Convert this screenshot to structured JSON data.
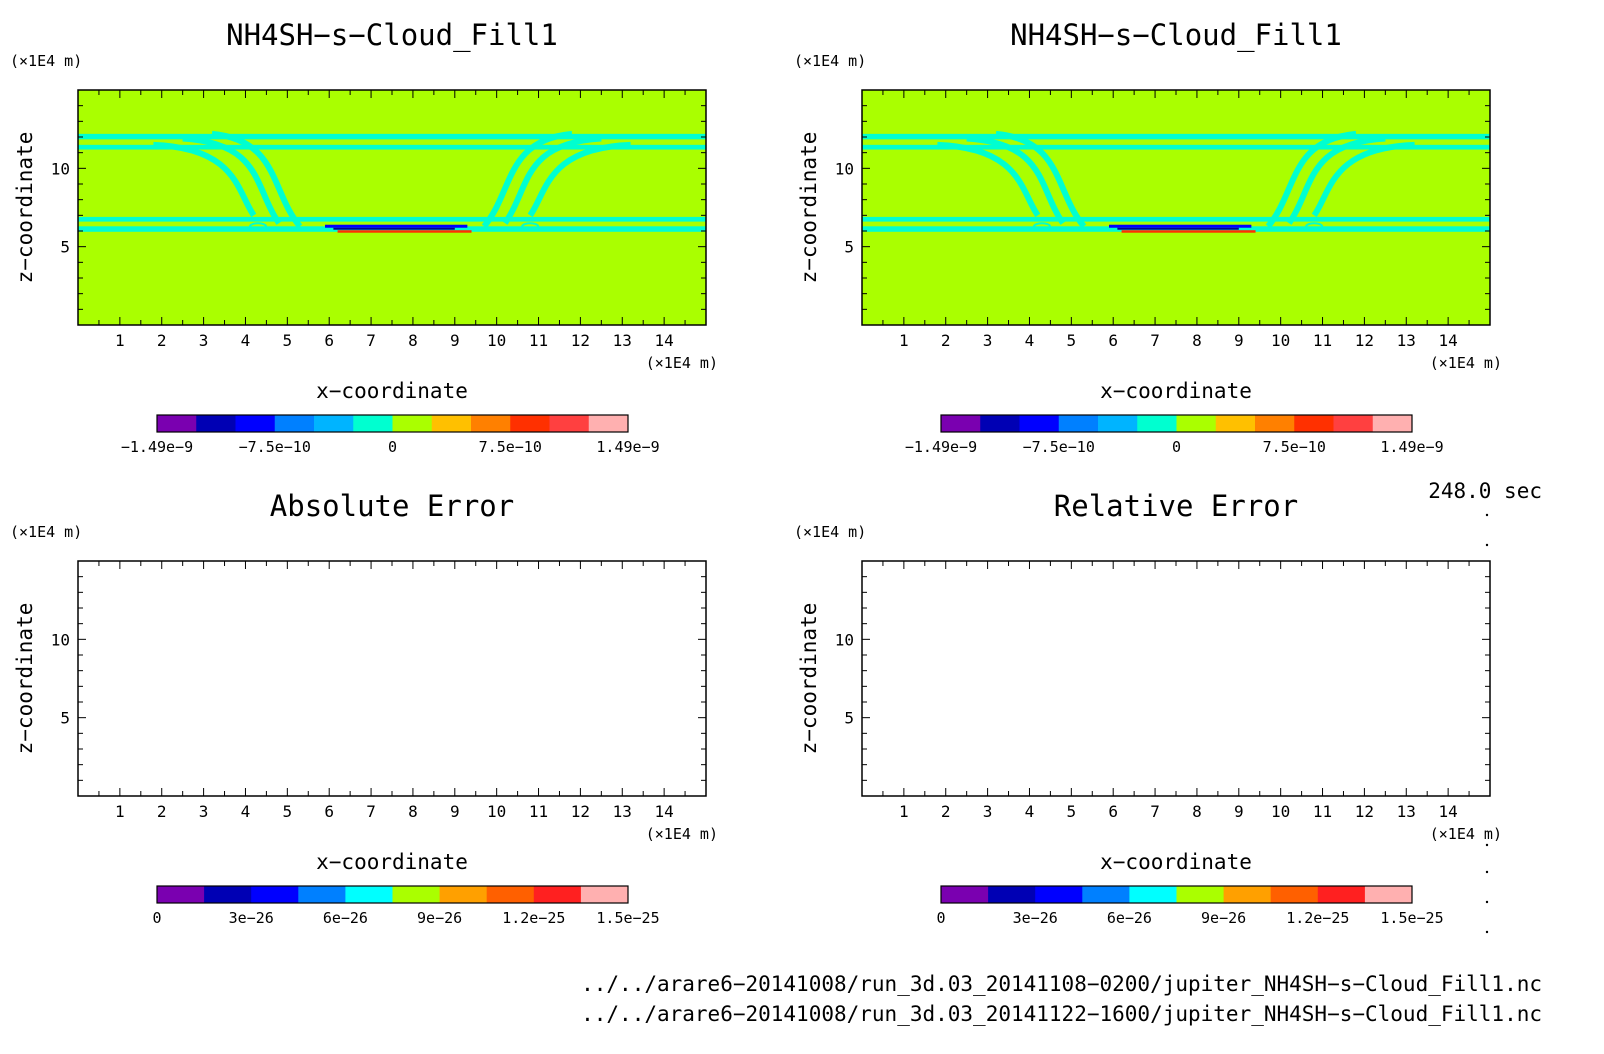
{
  "chart_data": [
    {
      "type": "heatmap",
      "id": "top-left",
      "title": "NH4SH−s−Cloud_Fill1",
      "xlabel": "x−coordinate",
      "ylabel": "z−coordinate",
      "x_unit": "(×1E4 m)",
      "y_unit": "(×1E4 m)",
      "xlim": [
        0,
        15
      ],
      "ylim": [
        0,
        15
      ],
      "x_ticks": [
        "1",
        "2",
        "3",
        "4",
        "5",
        "6",
        "7",
        "8",
        "9",
        "10",
        "11",
        "12",
        "13",
        "14"
      ],
      "y_ticks": [
        "5",
        "10"
      ],
      "field": "filled",
      "colorbar": {
        "colors": [
          "#7a00b0",
          "#0000b4",
          "#0000ff",
          "#0080ff",
          "#00b4ff",
          "#00ffd0",
          "#aaff00",
          "#ffc000",
          "#ff8000",
          "#ff3000",
          "#ff4040",
          "#ffb0b0"
        ],
        "labels": [
          "−1.49e−9",
          "−7.5e−10",
          "0",
          "7.5e−10",
          "1.49e−9"
        ]
      }
    },
    {
      "type": "heatmap",
      "id": "top-right",
      "title": "NH4SH−s−Cloud_Fill1",
      "xlabel": "x−coordinate",
      "ylabel": "z−coordinate",
      "x_unit": "(×1E4 m)",
      "y_unit": "(×1E4 m)",
      "xlim": [
        0,
        15
      ],
      "ylim": [
        0,
        15
      ],
      "x_ticks": [
        "1",
        "2",
        "3",
        "4",
        "5",
        "6",
        "7",
        "8",
        "9",
        "10",
        "11",
        "12",
        "13",
        "14"
      ],
      "y_ticks": [
        "5",
        "10"
      ],
      "field": "filled",
      "colorbar": {
        "colors": [
          "#7a00b0",
          "#0000b4",
          "#0000ff",
          "#0080ff",
          "#00b4ff",
          "#00ffd0",
          "#aaff00",
          "#ffc000",
          "#ff8000",
          "#ff3000",
          "#ff4040",
          "#ffb0b0"
        ],
        "labels": [
          "−1.49e−9",
          "−7.5e−10",
          "0",
          "7.5e−10",
          "1.49e−9"
        ]
      }
    },
    {
      "type": "heatmap",
      "id": "bottom-left",
      "title": "Absolute Error",
      "xlabel": "x−coordinate",
      "ylabel": "z−coordinate",
      "x_unit": "(×1E4 m)",
      "y_unit": "(×1E4 m)",
      "xlim": [
        0,
        15
      ],
      "ylim": [
        0,
        15
      ],
      "x_ticks": [
        "1",
        "2",
        "3",
        "4",
        "5",
        "6",
        "7",
        "8",
        "9",
        "10",
        "11",
        "12",
        "13",
        "14"
      ],
      "y_ticks": [
        "5",
        "10"
      ],
      "field": "empty",
      "colorbar": {
        "colors": [
          "#7a00b0",
          "#0000b4",
          "#0000ff",
          "#0080ff",
          "#00ffff",
          "#aaff00",
          "#ffa000",
          "#ff6000",
          "#ff2020",
          "#ffb0b0"
        ],
        "labels": [
          "0",
          "3e−26",
          "6e−26",
          "9e−26",
          "1.2e−25",
          "1.5e−25"
        ]
      }
    },
    {
      "type": "heatmap",
      "id": "bottom-right",
      "title": "Relative Error",
      "xlabel": "x−coordinate",
      "ylabel": "z−coordinate",
      "x_unit": "(×1E4 m)",
      "y_unit": "(×1E4 m)",
      "xlim": [
        0,
        15
      ],
      "ylim": [
        0,
        15
      ],
      "x_ticks": [
        "1",
        "2",
        "3",
        "4",
        "5",
        "6",
        "7",
        "8",
        "9",
        "10",
        "11",
        "12",
        "13",
        "14"
      ],
      "y_ticks": [
        "5",
        "10"
      ],
      "field": "empty",
      "colorbar": {
        "colors": [
          "#7a00b0",
          "#0000b4",
          "#0000ff",
          "#0080ff",
          "#00ffff",
          "#aaff00",
          "#ffa000",
          "#ff6000",
          "#ff2020",
          "#ffb0b0"
        ],
        "labels": [
          "0",
          "3e−26",
          "6e−26",
          "9e−26",
          "1.2e−25",
          "1.5e−25"
        ]
      }
    }
  ],
  "footer": {
    "time": "248.0 sec",
    "path1": "../../arare6−20141008/run_3d.03_20141108−0200/jupiter_NH4SH−s−Cloud_Fill1.nc",
    "path2": "../../arare6−20141008/run_3d.03_20141122−1600/jupiter_NH4SH−s−Cloud_Fill1.nc"
  },
  "colors": {
    "background_field": "#aaff00",
    "cloud_band": "#00ffd0",
    "negative_streak": "#0000ff",
    "positive_streak": "#ff3000"
  }
}
